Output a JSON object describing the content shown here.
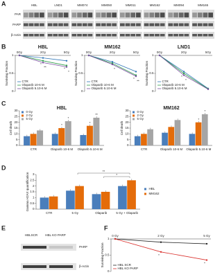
{
  "figure": {
    "panel_labels": [
      "A",
      "B",
      "C",
      "D",
      "E",
      "F"
    ],
    "blot_a": {
      "lines": [
        "HBL",
        "LND1",
        "MM074",
        "MM050",
        "MM011",
        "MM162",
        "MM094",
        "MM165"
      ],
      "rows": [
        "PAR",
        "PARP",
        "β-Actin"
      ]
    },
    "blot_e": {
      "lanes": [
        "HBLSCR",
        "HBL KO PARP"
      ],
      "rows": [
        "PARP",
        "β-Actin"
      ]
    }
  },
  "chart_data": [
    {
      "type": "line",
      "title": "HBL",
      "y_label": "Surviving Fraction",
      "categories": [
        "0Gy",
        "2Gy",
        "5Gy"
      ],
      "ylim": [
        0,
        1
      ],
      "yticks": [
        0,
        0.5,
        1
      ],
      "legend": "lower left",
      "series": [
        {
          "name": "CTR",
          "color": "#2e75b6",
          "values": [
            1,
            0.93,
            0.85
          ],
          "significance": [
            null,
            null,
            null
          ]
        },
        {
          "name": "Olaparib 10-6 M",
          "color": "#2e9e4a",
          "values": [
            1,
            0.85,
            0.72
          ],
          "significance": [
            null,
            "*",
            "*"
          ]
        },
        {
          "name": "Olaparib 5.10-6 M",
          "color": "#7a4fa0",
          "values": [
            1,
            0.8,
            0.68
          ],
          "significance": [
            null,
            "**",
            "*"
          ]
        }
      ]
    },
    {
      "type": "line",
      "title": "MM162",
      "y_label": "Surviving Fraction",
      "categories": [
        "0Gy",
        "2Gy",
        "5Gy"
      ],
      "ylim": [
        0,
        1
      ],
      "yticks": [
        0,
        0.5,
        1
      ],
      "legend": "lower left",
      "series": [
        {
          "name": "CTR",
          "color": "#2e75b6",
          "values": [
            1,
            0.82,
            0.55
          ],
          "significance": [
            null,
            null,
            null
          ]
        },
        {
          "name": "Olaparib 10-6 M",
          "color": "#2e9e4a",
          "values": [
            1,
            0.78,
            0.45
          ],
          "significance": [
            null,
            null,
            "*"
          ]
        },
        {
          "name": "Olaparib 5.10-6 M",
          "color": "#7a4fa0",
          "values": [
            1,
            0.75,
            0.42
          ],
          "significance": [
            null,
            "*",
            "**"
          ]
        }
      ]
    },
    {
      "type": "line",
      "title": "LND1",
      "y_label": "Surviving Fraction",
      "categories": [
        "0Gy",
        "2Gy",
        "5Gy"
      ],
      "ylim": [
        0,
        1
      ],
      "yticks": [
        0,
        0.5,
        1
      ],
      "legend": "lower left",
      "series": [
        {
          "name": "CTR",
          "color": "#2e75b6",
          "values": [
            1,
            0.55,
            0.08
          ],
          "significance": [
            null,
            null,
            null
          ]
        },
        {
          "name": "Olaparib 10-6 M",
          "color": "#2e9e4a",
          "values": [
            1,
            0.5,
            0.07
          ],
          "significance": [
            null,
            "*",
            null
          ]
        },
        {
          "name": "Olaparib 5.10-6 M",
          "color": "#7a4fa0",
          "values": [
            1,
            0.45,
            0.06
          ],
          "significance": [
            null,
            "*",
            null
          ]
        }
      ]
    },
    {
      "type": "bar",
      "title": "HBL",
      "y_label": "Cell death",
      "categories": [
        "CTR",
        "Olaparib 10-6 M",
        "Olaparib 5.10-6 M"
      ],
      "ylim": [
        0,
        30
      ],
      "yticks": [
        0,
        5,
        10,
        15,
        20,
        25,
        30
      ],
      "legend": "upper left",
      "series": [
        {
          "name": "0 Gy",
          "color": "#4a7ebb",
          "values": [
            8,
            10,
            9
          ],
          "significance": [
            null,
            null,
            null
          ]
        },
        {
          "name": "2 Gy",
          "color": "#e46c0a",
          "values": [
            10,
            15,
            17
          ],
          "significance": [
            null,
            "*",
            "*"
          ]
        },
        {
          "name": "5 Gy",
          "color": "#a5a5a5",
          "values": [
            13,
            21,
            24
          ],
          "significance": [
            null,
            "*",
            "**"
          ]
        }
      ]
    },
    {
      "type": "bar",
      "title": "MM162",
      "y_label": "Cell death",
      "categories": [
        "CTR",
        "Olaparib 10-6 M",
        "Olaparib 5.10-6 M"
      ],
      "ylim": [
        0,
        30
      ],
      "yticks": [
        0,
        5,
        10,
        15,
        20,
        25,
        30
      ],
      "legend": "upper left",
      "series": [
        {
          "name": "0 Gy",
          "color": "#4a7ebb",
          "values": [
            8,
            11,
            10
          ],
          "significance": [
            null,
            null,
            null
          ]
        },
        {
          "name": "2 Gy",
          "color": "#e46c0a",
          "values": [
            10,
            16,
            20
          ],
          "significance": [
            null,
            null,
            "*"
          ]
        },
        {
          "name": "5 Gy",
          "color": "#a5a5a5",
          "values": [
            14,
            22,
            27
          ],
          "significance": [
            null,
            null,
            "*"
          ]
        }
      ]
    },
    {
      "type": "bar",
      "y_label": "Gamma H2AX quantification",
      "categories": [
        "CTR",
        "5 Gy",
        "Olaparib",
        "5 Gy + Olaparib"
      ],
      "ylim": [
        0,
        3
      ],
      "yticks": [
        0,
        0.5,
        1,
        1.5,
        2,
        2.5,
        3
      ],
      "legend": "right",
      "annotations": [
        "**",
        "*"
      ],
      "series": [
        {
          "name": "HBL",
          "color": "#4a7ebb",
          "values": [
            1,
            1.6,
            1.3,
            2.0
          ],
          "significance": [
            null,
            null,
            null,
            null
          ]
        },
        {
          "name": "MM162",
          "color": "#e46c0a",
          "values": [
            1.1,
            2.0,
            1.5,
            2.5
          ],
          "significance": [
            null,
            null,
            null,
            null
          ]
        }
      ]
    },
    {
      "type": "line",
      "y_label": "Surviving Fraction",
      "categories": [
        "0 Gy",
        "2 Gy",
        "5 Gy"
      ],
      "ylim": [
        0,
        1
      ],
      "yticks": [
        0,
        0.5,
        1
      ],
      "legend": "lower left",
      "series": [
        {
          "name": "HBL SCR",
          "color": "#222222",
          "values": [
            1,
            0.9,
            0.85
          ],
          "significance": [
            null,
            null,
            null
          ]
        },
        {
          "name": "HBL KO PARP",
          "color": "#d9302c",
          "values": [
            1,
            0.6,
            0.35
          ],
          "significance": [
            null,
            "*",
            "*"
          ]
        }
      ]
    }
  ]
}
